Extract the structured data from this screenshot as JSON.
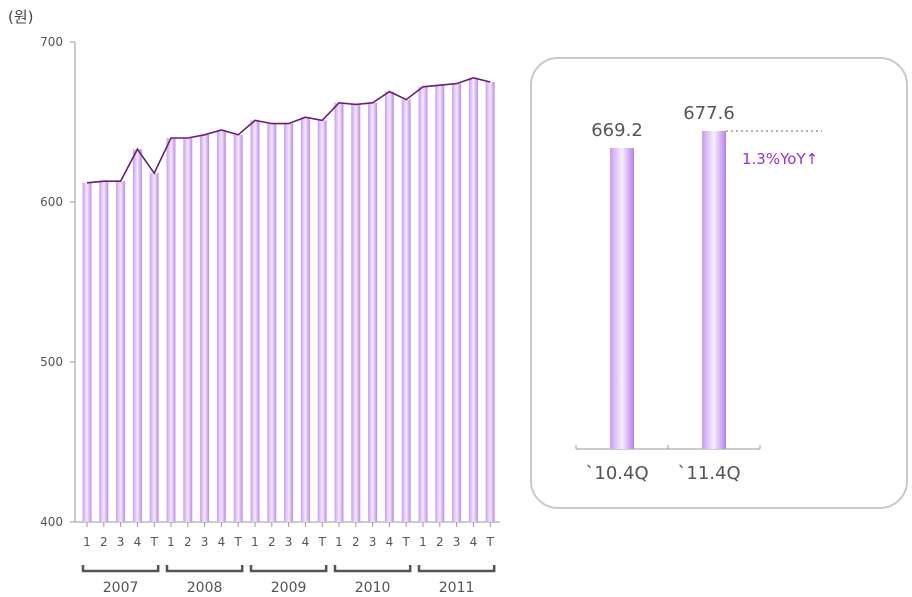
{
  "chart_data": [
    {
      "type": "bar",
      "ylabel": "(원)",
      "ylim": [
        400,
        700
      ],
      "yticks": [
        "400",
        "500",
        "600",
        "700"
      ],
      "colors": {
        "bar": "#c79cf3",
        "bar_light": "#f3e8ff",
        "line": "#6b1f73"
      },
      "groups": [
        {
          "year": "2007",
          "labels": [
            "1",
            "2",
            "3",
            "4",
            "T"
          ],
          "values": [
            612,
            613,
            613,
            633,
            618
          ]
        },
        {
          "year": "2008",
          "labels": [
            "1",
            "2",
            "3",
            "4",
            "T"
          ],
          "values": [
            640,
            640,
            642,
            645,
            642
          ]
        },
        {
          "year": "2009",
          "labels": [
            "1",
            "2",
            "3",
            "4",
            "T"
          ],
          "values": [
            651,
            649,
            649,
            653,
            651
          ]
        },
        {
          "year": "2010",
          "labels": [
            "1",
            "2",
            "3",
            "4",
            "T"
          ],
          "values": [
            662,
            661,
            662,
            669,
            664
          ]
        },
        {
          "year": "2011",
          "labels": [
            "1",
            "2",
            "3",
            "4",
            "T"
          ],
          "values": [
            672,
            673,
            674,
            677.6,
            675
          ]
        }
      ]
    },
    {
      "type": "bar",
      "categories": [
        "`10.4Q",
        "`11.4Q"
      ],
      "values": [
        669.2,
        677.6
      ],
      "value_labels": [
        "669.2",
        "677.6"
      ],
      "annotation": "1.3%YoY↑",
      "annotation_color": "#9b30c8"
    }
  ]
}
